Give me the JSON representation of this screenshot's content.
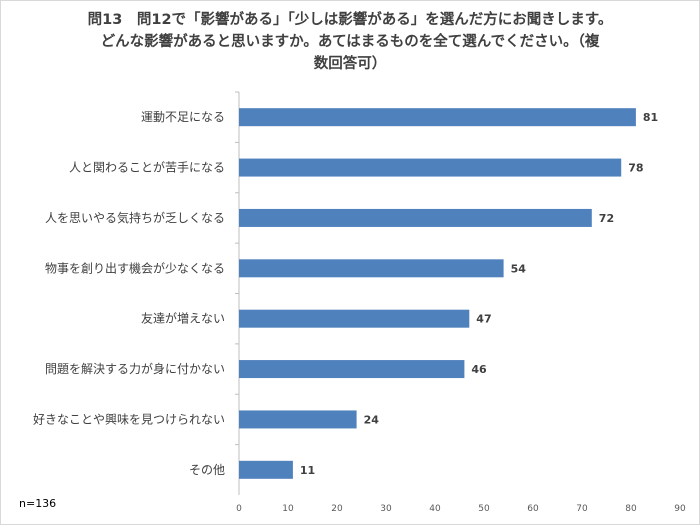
{
  "chart_data": {
    "type": "bar",
    "orientation": "horizontal",
    "title_lines": [
      "問13　問12で「影響がある」「少しは影響がある」を選んだ方にお聞きします。",
      "どんな影響があると思いますか。あてはまるものを全て選んでください。（複",
      "数回答可）"
    ],
    "categories": [
      "運動不足になる",
      "人と関わることが苦手になる",
      "人を思いやる気持ちが乏しくなる",
      "物事を創り出す機会が少なくなる",
      "友達が増えない",
      "問題を解決する力が身に付かない",
      "好きなことや興味を見つけられない",
      "その他"
    ],
    "values": [
      81,
      78,
      72,
      54,
      47,
      46,
      24,
      11
    ],
    "xlim": [
      0,
      90
    ],
    "xticks": [
      0,
      10,
      20,
      30,
      40,
      50,
      60,
      70,
      80,
      90
    ],
    "grid": false,
    "legend": "none",
    "bar_color": "#4f81bd",
    "note": "n=136"
  }
}
